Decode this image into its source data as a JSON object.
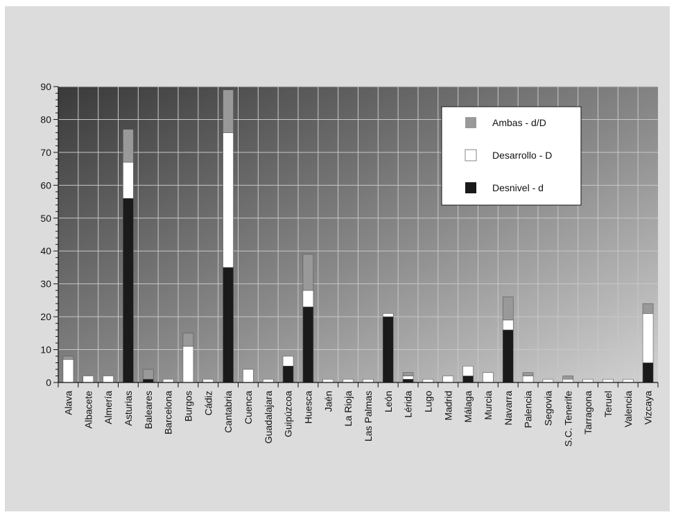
{
  "chart_data": {
    "type": "bar",
    "stacked": true,
    "title": "",
    "xlabel": "",
    "ylabel": "",
    "ylim": [
      0,
      90
    ],
    "yticks": [
      0,
      10,
      20,
      30,
      40,
      50,
      60,
      70,
      80,
      90
    ],
    "grid": true,
    "legend_position": "top-right",
    "categories": [
      "Alava",
      "Albacete",
      "Almería",
      "Asturias",
      "Baleares",
      "Barcelona",
      "Burgos",
      "Cádiz",
      "Cantabria",
      "Cuenca",
      "Guadalajara",
      "Guipúzcoa",
      "Huesca",
      "Jaén",
      "La Rioja",
      "Las Palmas",
      "León",
      "Lérida",
      "Lugo",
      "Madrid",
      "Málaga",
      "Murcia",
      "Navarra",
      "Palencia",
      "Segovia",
      "S.C. Tenerife",
      "Tarragona",
      "Teruel",
      "Valencia",
      "Vizcaya"
    ],
    "series": [
      {
        "name": "Desnivel - d",
        "color": "#1a1a1a",
        "values": [
          0,
          0,
          0,
          56,
          1,
          0,
          0,
          0,
          35,
          0,
          0,
          5,
          23,
          0,
          0,
          0,
          20,
          1,
          0,
          0,
          2,
          0,
          16,
          0,
          0,
          0,
          0,
          0,
          0,
          6
        ]
      },
      {
        "name": "Desarrollo - D",
        "color": "#ffffff",
        "values": [
          7,
          2,
          2,
          11,
          0,
          1,
          11,
          1,
          41,
          4,
          1,
          3,
          5,
          1,
          1,
          1,
          1,
          1,
          1,
          2,
          3,
          3,
          3,
          2,
          1,
          1,
          1,
          1,
          1,
          15
        ]
      },
      {
        "name": "Ambas - d/D",
        "color": "#999999",
        "values": [
          1,
          0,
          0,
          10,
          3,
          0,
          4,
          0,
          13,
          0,
          0,
          0,
          11,
          0,
          0,
          0,
          0,
          1,
          0,
          0,
          0,
          0,
          7,
          1,
          0,
          1,
          0,
          0,
          0,
          3
        ]
      }
    ],
    "legend_order": [
      "Ambas - d/D",
      "Desarrollo - D",
      "Desnivel - d"
    ]
  }
}
